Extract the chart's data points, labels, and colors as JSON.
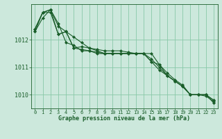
{
  "title": "Graphe pression niveau de la mer (hPa)",
  "background_color": "#cce8dc",
  "plot_bg_color": "#cce8dc",
  "grid_color": "#88c8a8",
  "line_color": "#1a5e2a",
  "xlim": [
    -0.5,
    23.5
  ],
  "ylim": [
    1009.5,
    1013.3
  ],
  "yticks": [
    1010,
    1011,
    1012
  ],
  "xticks": [
    0,
    1,
    2,
    3,
    4,
    5,
    6,
    7,
    8,
    9,
    10,
    11,
    12,
    13,
    14,
    15,
    16,
    17,
    18,
    19,
    20,
    21,
    22,
    23
  ],
  "series": [
    [
      1012.3,
      1012.8,
      1013.1,
      1012.5,
      1012.3,
      1012.1,
      1011.9,
      1011.7,
      1011.6,
      1011.5,
      1011.5,
      1011.5,
      1011.5,
      1011.5,
      1011.5,
      1011.2,
      1010.9,
      1010.7,
      1010.5,
      1010.3,
      1010.0,
      1010.0,
      1010.0,
      1009.8
    ],
    [
      1012.4,
      1013.0,
      1013.1,
      1012.2,
      1012.3,
      1011.7,
      1011.75,
      1011.7,
      1011.65,
      1011.6,
      1011.6,
      1011.6,
      1011.55,
      1011.5,
      1011.5,
      1011.2,
      1011.1,
      1010.7,
      1010.5,
      1010.3,
      1010.0,
      1010.0,
      1009.95,
      1009.75
    ],
    [
      1012.3,
      1013.0,
      1013.1,
      1012.6,
      1011.9,
      1011.8,
      1011.6,
      1011.6,
      1011.5,
      1011.5,
      1011.5,
      1011.5,
      1011.5,
      1011.5,
      1011.5,
      1011.5,
      1011.1,
      1010.8,
      1010.55,
      1010.35,
      1010.0,
      1010.0,
      1010.0,
      1009.8
    ],
    [
      1012.4,
      1013.0,
      1013.0,
      1012.2,
      1012.3,
      1011.7,
      1011.65,
      1011.6,
      1011.55,
      1011.5,
      1011.5,
      1011.5,
      1011.5,
      1011.5,
      1011.5,
      1011.3,
      1011.0,
      1010.7,
      1010.5,
      1010.3,
      1010.0,
      1010.0,
      1010.0,
      1009.7
    ]
  ],
  "marker": "D",
  "markersize": 2.0,
  "linewidth": 0.8,
  "xlabel_fontsize": 6.0,
  "ytick_fontsize": 6.0,
  "xtick_fontsize": 5.0
}
